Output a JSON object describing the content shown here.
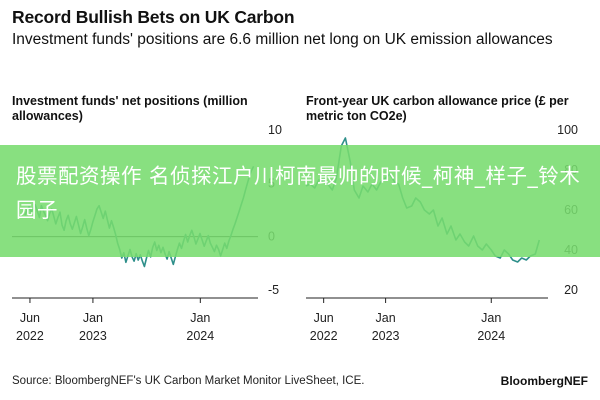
{
  "header": {
    "title": "Record Bullish Bets on UK Carbon",
    "subtitle": "Investment funds' positions are 6.6 million net long on UK emission allowances"
  },
  "overlay": {
    "text": "股票配资操作 名侦探江户川柯南最帅的时候_柯神_样子_铃木园子",
    "color": "#78dc6e"
  },
  "footer": {
    "source": "Source: BloombergNEF's UK Carbon Market Monitor LiveSheet, ICE.",
    "brand": "BloombergNEF"
  },
  "chart_data": [
    {
      "type": "line",
      "title": "Investment funds' net positions (million allowances)",
      "ylim": [
        -5,
        10
      ],
      "y_ticks": [
        "10",
        "5",
        "0",
        "-5"
      ],
      "x_ticks": [
        {
          "line1": "Jun",
          "line2": "2022"
        },
        {
          "line1": "Jan",
          "line2": "2023"
        },
        {
          "line1": "Jan",
          "line2": "2024"
        }
      ],
      "zero_line": true,
      "color": "#2e8f8a",
      "series": [
        {
          "x": [
            "2022-05-15",
            "2022-05-22",
            "2022-05-29",
            "2022-06-05",
            "2022-06-12",
            "2022-06-19",
            "2022-06-26",
            "2022-07-03",
            "2022-07-10",
            "2022-07-17",
            "2022-07-24",
            "2022-07-31",
            "2022-08-07",
            "2022-08-14",
            "2022-08-21",
            "2022-08-28",
            "2022-09-04",
            "2022-09-11",
            "2022-09-18",
            "2022-09-25",
            "2022-10-02",
            "2022-10-09",
            "2022-10-16",
            "2022-10-23",
            "2022-10-30",
            "2022-11-06",
            "2022-11-13",
            "2022-11-20",
            "2022-11-27",
            "2022-12-04",
            "2022-12-11",
            "2022-12-18",
            "2022-12-25",
            "2023-01-01",
            "2023-01-08",
            "2023-01-15",
            "2023-01-22",
            "2023-01-29",
            "2023-02-05",
            "2023-02-12",
            "2023-02-19",
            "2023-02-26",
            "2023-03-05",
            "2023-03-12",
            "2023-03-19",
            "2023-03-26",
            "2023-04-02",
            "2023-04-09",
            "2023-04-16",
            "2023-04-23",
            "2023-04-30",
            "2023-05-07",
            "2023-05-14",
            "2023-05-21",
            "2023-05-28",
            "2023-06-04",
            "2023-06-11",
            "2023-06-18",
            "2023-06-25",
            "2023-07-02",
            "2023-07-09",
            "2023-07-16",
            "2023-07-23",
            "2023-07-30",
            "2023-08-06",
            "2023-08-13",
            "2023-08-20",
            "2023-08-27",
            "2023-09-03",
            "2023-09-10",
            "2023-09-17",
            "2023-09-24",
            "2023-10-01",
            "2023-10-08",
            "2023-10-15",
            "2023-10-22",
            "2023-10-29",
            "2023-11-05",
            "2023-11-12",
            "2023-11-19",
            "2023-11-26",
            "2023-12-03",
            "2023-12-10",
            "2023-12-17",
            "2023-12-24",
            "2023-12-31",
            "2024-01-07",
            "2024-01-14",
            "2024-01-21",
            "2024-01-28",
            "2024-02-04",
            "2024-02-11",
            "2024-02-18",
            "2024-02-25",
            "2024-03-03",
            "2024-03-10",
            "2024-03-17",
            "2024-03-24",
            "2024-03-31",
            "2024-04-07",
            "2024-04-14",
            "2024-04-21",
            "2024-04-28",
            "2024-05-05",
            "2024-05-12",
            "2024-05-19",
            "2024-05-26",
            "2024-06-02",
            "2024-06-09",
            "2024-06-16",
            "2024-06-23",
            "2024-06-30"
          ],
          "values": [
            2.0,
            2.5,
            2.8,
            2.3,
            2.7,
            3.0,
            2.4,
            1.8,
            2.9,
            2.4,
            2.0,
            1.5,
            2.2,
            2.6,
            1.9,
            1.2,
            1.8,
            2.3,
            1.1,
            0.6,
            1.5,
            2.0,
            1.2,
            0.7,
            1.3,
            1.9,
            1.1,
            0.3,
            0.9,
            1.6,
            0.8,
            0.1,
            0.7,
            1.4,
            2.0,
            2.6,
            2.9,
            2.3,
            1.7,
            2.4,
            1.6,
            0.8,
            1.5,
            0.9,
            0.2,
            -0.6,
            -1.2,
            -2.0,
            -1.5,
            -2.4,
            -1.8,
            -1.2,
            -1.9,
            -2.3,
            -1.6,
            -2.2,
            -1.7,
            -2.3,
            -2.8,
            -2.0,
            -1.3,
            -1.9,
            -1.0,
            -0.5,
            -1.3,
            -0.8,
            -1.5,
            -1.0,
            -1.6,
            -2.1,
            -1.4,
            -2.0,
            -2.6,
            -1.9,
            -1.2,
            -0.6,
            -1.1,
            -0.4,
            0.2,
            -0.5,
            0.1,
            0.6,
            0.0,
            -0.7,
            -0.2,
            0.3,
            -0.3,
            -0.9,
            -0.4,
            0.1,
            -0.6,
            -1.0,
            -1.4,
            -0.8,
            -1.2,
            -1.8,
            -1.2,
            -0.6,
            -1.1,
            -0.4,
            0.1,
            0.7,
            1.2,
            1.8,
            2.4,
            3.0,
            3.6,
            4.3,
            5.0,
            5.7,
            6.2,
            6.6
          ]
        }
      ]
    },
    {
      "type": "line",
      "title": "Front-year UK carbon allowance price (£ per metric ton CO2e)",
      "ylim": [
        20,
        100
      ],
      "y_ticks": [
        "100",
        "80",
        "60",
        "40",
        "20"
      ],
      "x_ticks": [
        {
          "line1": "Jun",
          "line2": "2022"
        },
        {
          "line1": "Jan",
          "line2": "2023"
        },
        {
          "line1": "Jan",
          "line2": "2024"
        }
      ],
      "zero_line": false,
      "color": "#2e8f8a",
      "series": [
        {
          "x": [
            "2022-04-01",
            "2022-04-15",
            "2022-05-01",
            "2022-05-15",
            "2022-06-01",
            "2022-06-15",
            "2022-07-01",
            "2022-07-15",
            "2022-08-01",
            "2022-08-15",
            "2022-09-01",
            "2022-09-15",
            "2022-10-01",
            "2022-10-15",
            "2022-11-01",
            "2022-11-15",
            "2022-12-01",
            "2022-12-15",
            "2023-01-01",
            "2023-01-15",
            "2023-02-01",
            "2023-02-15",
            "2023-03-01",
            "2023-03-15",
            "2023-04-01",
            "2023-04-15",
            "2023-05-01",
            "2023-05-15",
            "2023-06-01",
            "2023-06-15",
            "2023-07-01",
            "2023-07-15",
            "2023-08-01",
            "2023-08-15",
            "2023-09-01",
            "2023-09-15",
            "2023-10-01",
            "2023-10-15",
            "2023-11-01",
            "2023-11-15",
            "2023-12-01",
            "2023-12-15",
            "2024-01-01",
            "2024-01-15",
            "2024-02-01",
            "2024-02-15",
            "2024-03-01",
            "2024-03-15",
            "2024-04-01",
            "2024-04-15",
            "2024-05-01",
            "2024-05-15",
            "2024-06-01",
            "2024-06-15"
          ],
          "values": [
            72,
            73,
            71,
            75,
            74,
            73,
            70,
            76,
            92,
            96,
            84,
            70,
            66,
            72,
            69,
            73,
            70,
            74,
            76,
            78,
            74,
            73,
            66,
            61,
            62,
            66,
            64,
            60,
            58,
            60,
            52,
            56,
            48,
            52,
            45,
            48,
            44,
            42,
            47,
            42,
            40,
            43,
            40,
            37,
            36,
            40,
            38,
            35,
            34,
            36,
            35,
            37,
            38,
            45
          ]
        }
      ]
    }
  ]
}
